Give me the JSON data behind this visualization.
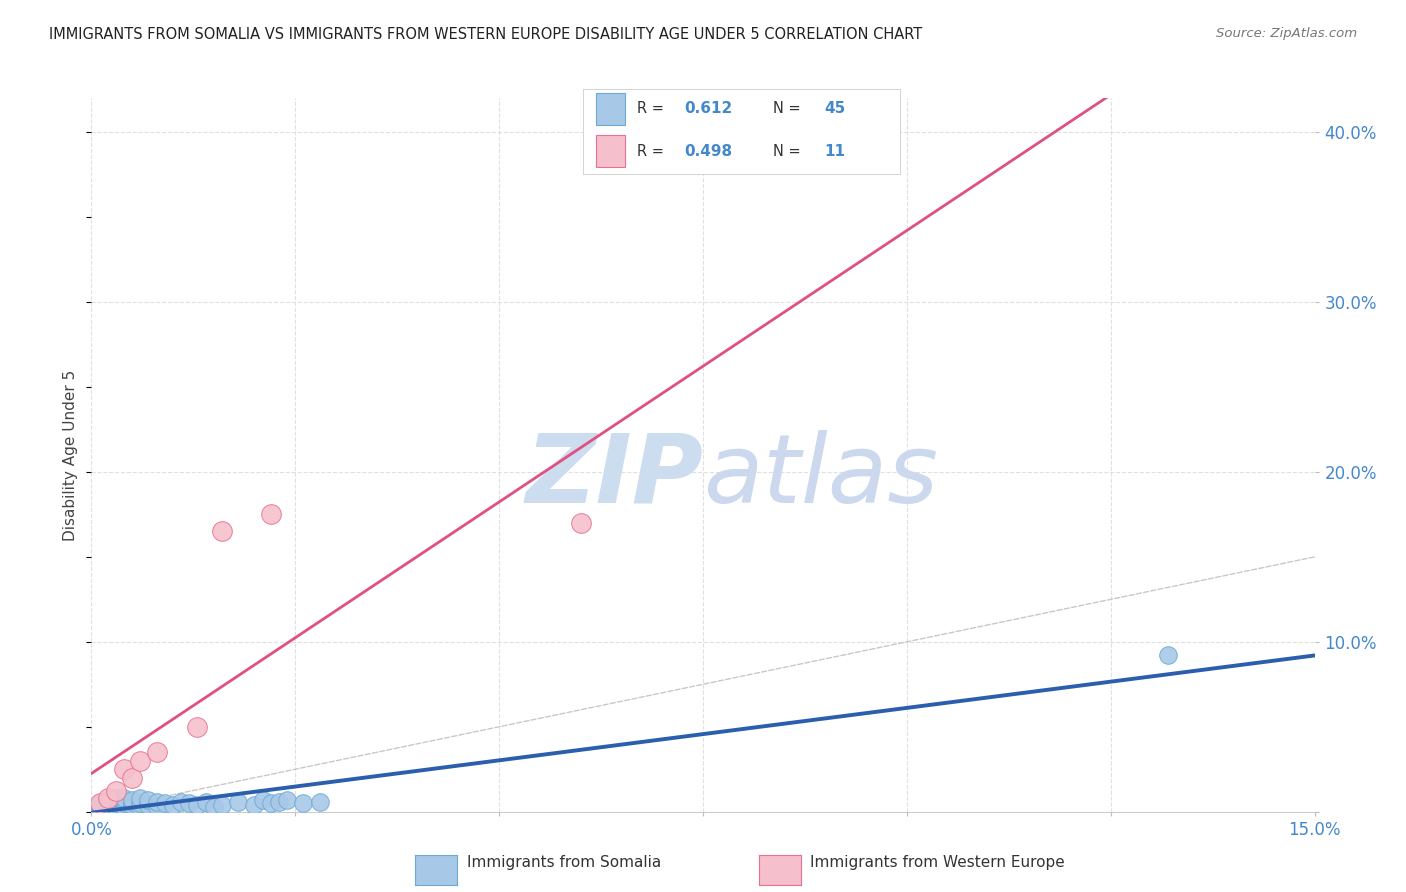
{
  "title": "IMMIGRANTS FROM SOMALIA VS IMMIGRANTS FROM WESTERN EUROPE DISABILITY AGE UNDER 5 CORRELATION CHART",
  "source": "Source: ZipAtlas.com",
  "ylabel": "Disability Age Under 5",
  "xlim": [
    0.0,
    0.15
  ],
  "ylim": [
    0.0,
    0.42
  ],
  "somalia_color": "#a8c8e8",
  "somalia_edge_color": "#6aaad4",
  "western_europe_color": "#f5c0cc",
  "western_europe_edge_color": "#e87090",
  "blue_line_color": "#2b5fad",
  "pink_line_color": "#e05080",
  "diag_line_color": "#c8c8c8",
  "R_somalia": 0.612,
  "N_somalia": 45,
  "R_western_europe": 0.498,
  "N_western_europe": 11,
  "somalia_x": [
    0.001,
    0.001,
    0.001,
    0.002,
    0.002,
    0.002,
    0.002,
    0.003,
    0.003,
    0.003,
    0.003,
    0.003,
    0.004,
    0.004,
    0.004,
    0.004,
    0.004,
    0.005,
    0.005,
    0.005,
    0.005,
    0.006,
    0.006,
    0.006,
    0.007,
    0.007,
    0.008,
    0.008,
    0.009,
    0.01,
    0.011,
    0.012,
    0.013,
    0.014,
    0.015,
    0.016,
    0.018,
    0.02,
    0.021,
    0.022,
    0.023,
    0.024,
    0.026,
    0.028,
    0.132
  ],
  "somalia_y": [
    0.002,
    0.003,
    0.005,
    0.001,
    0.002,
    0.004,
    0.007,
    0.001,
    0.002,
    0.003,
    0.005,
    0.008,
    0.002,
    0.003,
    0.005,
    0.007,
    0.008,
    0.002,
    0.004,
    0.006,
    0.007,
    0.003,
    0.005,
    0.008,
    0.004,
    0.007,
    0.003,
    0.006,
    0.005,
    0.004,
    0.006,
    0.005,
    0.004,
    0.006,
    0.003,
    0.004,
    0.006,
    0.004,
    0.007,
    0.005,
    0.006,
    0.007,
    0.005,
    0.006,
    0.092
  ],
  "western_europe_x": [
    0.001,
    0.002,
    0.003,
    0.004,
    0.005,
    0.006,
    0.008,
    0.013,
    0.016,
    0.022,
    0.06
  ],
  "western_europe_y": [
    0.005,
    0.008,
    0.012,
    0.025,
    0.02,
    0.03,
    0.035,
    0.05,
    0.165,
    0.175,
    0.17
  ],
  "legend_labels": [
    "Immigrants from Somalia",
    "Immigrants from Western Europe"
  ],
  "grid_color": "#e0e0e0",
  "background_color": "#ffffff",
  "watermark_color": "#ccddf0"
}
